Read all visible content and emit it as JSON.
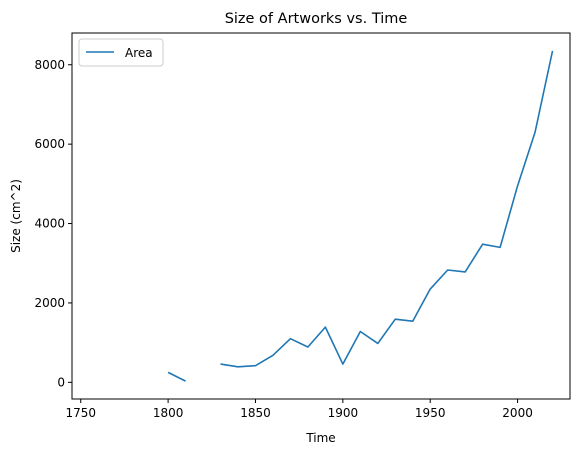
{
  "chart_data": {
    "type": "line",
    "title": "Size of Artworks vs. Time",
    "xlabel": "Time",
    "ylabel": "Size (cm^2)",
    "xlim": [
      1745,
      2030
    ],
    "ylim": [
      -420,
      8800
    ],
    "x_ticks": [
      1750,
      1800,
      1850,
      1900,
      1950,
      2000
    ],
    "y_ticks": [
      0,
      2000,
      4000,
      6000,
      8000
    ],
    "grid": false,
    "legend": {
      "position": "top-left",
      "entries": [
        "Area"
      ]
    },
    "series": [
      {
        "name": "Area",
        "color": "#1f77b4",
        "x": [
          1800,
          1810,
          1820,
          1830,
          1840,
          1850,
          1860,
          1870,
          1880,
          1890,
          1900,
          1910,
          1920,
          1930,
          1940,
          1950,
          1960,
          1970,
          1980,
          1990,
          2000,
          2010,
          2020
        ],
        "y": [
          250,
          30,
          null,
          460,
          390,
          420,
          680,
          1100,
          890,
          1390,
          460,
          1280,
          980,
          1590,
          1540,
          2350,
          2830,
          2780,
          3480,
          3400,
          4950,
          6300,
          8350
        ]
      }
    ]
  }
}
